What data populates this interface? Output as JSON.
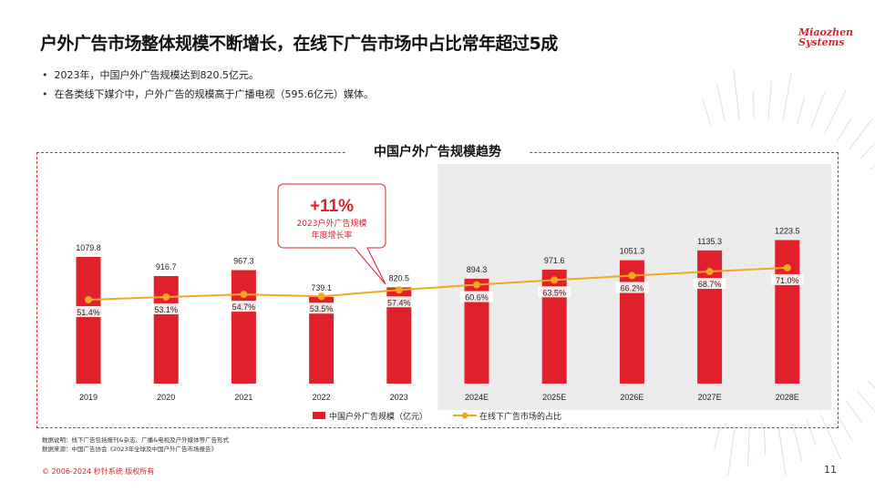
{
  "header": {
    "title": "户外广告市场整体规模不断增长，在线下广告市场中占比常年超过5成",
    "logo_line1": "Miaozhen",
    "logo_line2": "Systems"
  },
  "bullets": [
    "2023年，中国户外广告规模达到820.5亿元。",
    "在各类线下媒介中，户外广告的规模高于广播电视（595.6亿元）媒体。"
  ],
  "callout": {
    "big": "+11%",
    "line1": "2023户外广告规模",
    "line2": "年度增长率"
  },
  "notes": {
    "line1": "数据说明：线下广告包括报刊&杂志、广播&电视及户外媒体等广告形式",
    "line2": "数据来源：中国广告协会《2023年全球及中国户外广告市场报告》"
  },
  "footer": {
    "copyright": "© 2006-2024 秒针系统 版权所有",
    "page": "11"
  },
  "colors": {
    "bar": "#e0202b",
    "line": "#f5a623",
    "forecast_bg": "#ebebeb",
    "frame": "#e0262f"
  },
  "chart_data": {
    "type": "bar",
    "title": "中国户外广告规模趋势",
    "categories": [
      "2019",
      "2020",
      "2021",
      "2022",
      "2023",
      "2024E",
      "2025E",
      "2026E",
      "2027E",
      "2028E"
    ],
    "series": [
      {
        "name": "中国户外广告规模（亿元）",
        "kind": "bar",
        "values": [
          1079.8,
          916.7,
          967.3,
          739.1,
          820.5,
          894.3,
          971.6,
          1051.3,
          1135.3,
          1223.5
        ],
        "labels": [
          "1079.8",
          "916.7",
          "967.3",
          "739.1",
          "820.5",
          "894.3",
          "971.6",
          "1051.3",
          "1135.3",
          "1223.5"
        ]
      },
      {
        "name": "在线下广告市场的占比",
        "kind": "line",
        "values": [
          51.4,
          53.1,
          54.7,
          53.5,
          57.4,
          60.6,
          63.5,
          66.2,
          68.7,
          71.0
        ],
        "labels": [
          "51.4%",
          "53.1%",
          "54.7%",
          "53.5%",
          "57.4%",
          "60.6%",
          "63.5%",
          "66.2%",
          "68.7%",
          "71.0%"
        ]
      }
    ],
    "forecast_start_index": 5,
    "legend_position": "bottom-center",
    "grid": false
  }
}
